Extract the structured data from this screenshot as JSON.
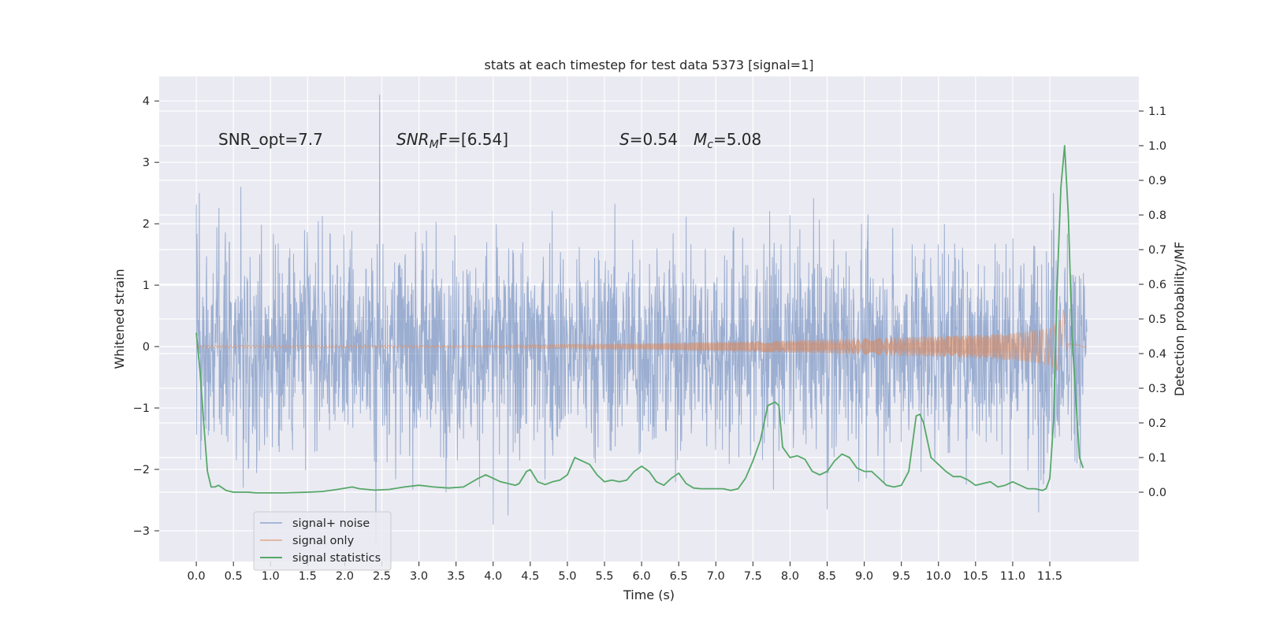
{
  "chart_data": {
    "type": "line",
    "title": "stats at each timestep for test data 5373 [signal=1]",
    "xlabel": "Time (s)",
    "ylabel": "Whitened strain",
    "y2label": "Detection probability/MF",
    "xlim": [
      -0.5,
      12.7
    ],
    "ylim": [
      -3.5,
      4.4
    ],
    "y2lim": [
      -0.2,
      1.2
    ],
    "xticks": [
      "0.0",
      "0.5",
      "1.0",
      "1.5",
      "2.0",
      "2.5",
      "3.0",
      "3.5",
      "4.0",
      "4.5",
      "5.0",
      "5.5",
      "6.0",
      "6.5",
      "7.0",
      "7.5",
      "8.0",
      "8.5",
      "9.0",
      "9.5",
      "10.0",
      "10.5",
      "11.0",
      "11.5"
    ],
    "yticks": [
      "4",
      "3",
      "2",
      "1",
      "0",
      "−1",
      "−2",
      "−3"
    ],
    "y2ticks": [
      "1.1",
      "1.0",
      "0.9",
      "0.8",
      "0.7",
      "0.6",
      "0.5",
      "0.4",
      "0.3",
      "0.2",
      "0.1",
      "0.0"
    ],
    "grid": true,
    "legend_position": "lower-left",
    "annotations": {
      "snr_opt": "SNR_opt=7.7",
      "snr_mf_main": "SNR",
      "snr_mf_sub": "M",
      "snr_mf_rest": "F=[6.54]",
      "s_main": "S",
      "s_rest": "=0.54",
      "mc_main": "M",
      "mc_sub": "c",
      "mc_rest": "=5.08"
    },
    "series": [
      {
        "name": "signal+ noise",
        "color": "#4c72b0",
        "axis": "left",
        "duration": 12.0,
        "typical_amplitude": 1.05,
        "peaks": [
          [
            0.04,
            2.5
          ],
          [
            0.6,
            2.6
          ],
          [
            2.47,
            4.1
          ],
          [
            2.42,
            -3.2
          ],
          [
            4.0,
            -2.9
          ],
          [
            4.2,
            -2.75
          ],
          [
            8.5,
            -2.65
          ],
          [
            11.35,
            -2.7
          ],
          [
            11.55,
            2.5
          ]
        ]
      },
      {
        "name": "signal only",
        "color": "#dd8452",
        "axis": "left",
        "duration": 12.0,
        "envelope": [
          [
            0.0,
            0.02
          ],
          [
            4.0,
            0.02
          ],
          [
            6.0,
            0.05
          ],
          [
            8.0,
            0.1
          ],
          [
            10.0,
            0.17
          ],
          [
            11.0,
            0.22
          ],
          [
            11.5,
            0.3
          ],
          [
            11.65,
            0.45
          ],
          [
            11.68,
            -0.65
          ],
          [
            11.75,
            0.05
          ],
          [
            12.0,
            0.0
          ]
        ]
      },
      {
        "name": "signal statistics",
        "color": "#55a868",
        "axis": "right",
        "x": [
          0.0,
          0.05,
          0.1,
          0.15,
          0.2,
          0.25,
          0.3,
          0.4,
          0.5,
          0.6,
          0.7,
          0.8,
          1.0,
          1.2,
          1.5,
          1.7,
          1.9,
          2.1,
          2.2,
          2.4,
          2.6,
          2.8,
          3.0,
          3.2,
          3.4,
          3.6,
          3.8,
          3.9,
          4.0,
          4.1,
          4.2,
          4.3,
          4.35,
          4.45,
          4.5,
          4.6,
          4.7,
          4.8,
          4.9,
          5.0,
          5.1,
          5.2,
          5.3,
          5.4,
          5.5,
          5.6,
          5.7,
          5.8,
          5.9,
          6.0,
          6.1,
          6.2,
          6.3,
          6.4,
          6.5,
          6.6,
          6.7,
          6.8,
          6.9,
          7.0,
          7.1,
          7.2,
          7.3,
          7.4,
          7.5,
          7.6,
          7.7,
          7.8,
          7.85,
          7.9,
          8.0,
          8.1,
          8.2,
          8.3,
          8.4,
          8.5,
          8.6,
          8.7,
          8.8,
          8.9,
          9.0,
          9.1,
          9.2,
          9.3,
          9.4,
          9.5,
          9.6,
          9.7,
          9.75,
          9.8,
          9.9,
          10.0,
          10.1,
          10.2,
          10.3,
          10.4,
          10.5,
          10.6,
          10.7,
          10.8,
          10.9,
          11.0,
          11.1,
          11.2,
          11.3,
          11.4,
          11.45,
          11.5,
          11.55,
          11.6,
          11.65,
          11.7,
          11.75,
          11.8,
          11.85,
          11.9,
          11.95
        ],
        "values": [
          0.46,
          0.35,
          0.2,
          0.06,
          0.015,
          0.015,
          0.02,
          0.005,
          0.0,
          0.0,
          0.0,
          -0.002,
          -0.002,
          -0.002,
          0.0,
          0.002,
          0.008,
          0.015,
          0.01,
          0.006,
          0.008,
          0.015,
          0.02,
          0.015,
          0.012,
          0.015,
          0.04,
          0.05,
          0.04,
          0.03,
          0.025,
          0.02,
          0.025,
          0.06,
          0.065,
          0.03,
          0.022,
          0.03,
          0.035,
          0.05,
          0.1,
          0.09,
          0.08,
          0.05,
          0.03,
          0.035,
          0.03,
          0.035,
          0.06,
          0.075,
          0.06,
          0.03,
          0.02,
          0.04,
          0.055,
          0.025,
          0.012,
          0.01,
          0.01,
          0.01,
          0.01,
          0.005,
          0.01,
          0.04,
          0.09,
          0.15,
          0.25,
          0.26,
          0.25,
          0.13,
          0.1,
          0.105,
          0.095,
          0.06,
          0.05,
          0.06,
          0.09,
          0.11,
          0.1,
          0.07,
          0.06,
          0.06,
          0.04,
          0.02,
          0.015,
          0.02,
          0.06,
          0.22,
          0.225,
          0.2,
          0.1,
          0.08,
          0.06,
          0.045,
          0.045,
          0.035,
          0.02,
          0.025,
          0.03,
          0.015,
          0.02,
          0.03,
          0.02,
          0.01,
          0.01,
          0.005,
          0.01,
          0.04,
          0.2,
          0.6,
          0.88,
          1.0,
          0.8,
          0.45,
          0.27,
          0.1,
          0.07
        ]
      }
    ]
  }
}
